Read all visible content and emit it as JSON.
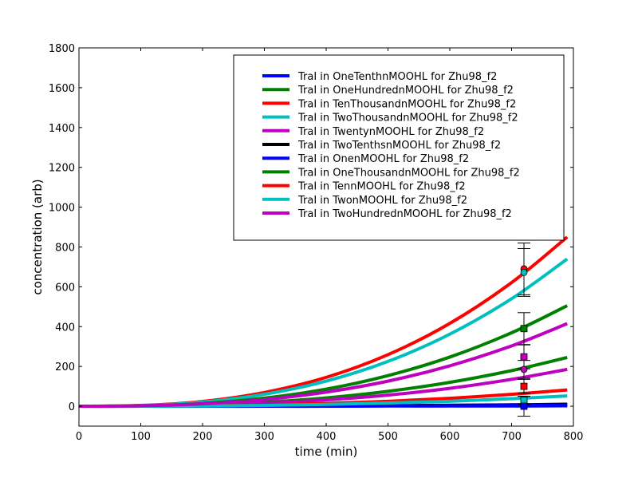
{
  "chart_data": {
    "type": "line",
    "title": "",
    "xlabel": "time (min)",
    "ylabel": "concentration (arb)",
    "xlim": [
      0,
      800
    ],
    "ylim": [
      -100,
      1800
    ],
    "xticks": [
      0,
      100,
      200,
      300,
      400,
      500,
      600,
      700,
      800
    ],
    "yticks": [
      0,
      200,
      400,
      600,
      800,
      1000,
      1200,
      1400,
      1600,
      1800
    ],
    "grid": false,
    "legend_position": "top-right",
    "x": [
      0,
      100,
      200,
      300,
      400,
      500,
      600,
      700,
      790
    ],
    "series": [
      {
        "name": "TraI in OneTenthnMOOHL for Zhu98_f2",
        "color": "#0000ff",
        "values": [
          0,
          0,
          0,
          0,
          0,
          1,
          1,
          1,
          2
        ]
      },
      {
        "name": "TraI in OneHundrednMOOHL for Zhu98_f2",
        "color": "#008000",
        "values": [
          0,
          1,
          7,
          20,
          42,
          75,
          120,
          179,
          245
        ]
      },
      {
        "name": "TraI in TenThousandnMOOHL for Zhu98_f2",
        "color": "#ff0000",
        "values": [
          0,
          4,
          24,
          69,
          145,
          259,
          416,
          621,
          850
        ]
      },
      {
        "name": "TraI in TwoThousandnMOOHL for Zhu98_f2",
        "color": "#00bfbf",
        "values": [
          0,
          3,
          21,
          60,
          126,
          225,
          362,
          540,
          740
        ]
      },
      {
        "name": "TraI in TwentynMOOHL for Zhu98_f2",
        "color": "#bf00bf",
        "values": [
          0,
          1,
          5,
          15,
          32,
          56,
          90,
          135,
          185
        ]
      },
      {
        "name": "TraI in TwoTenthsnMOOHL for Zhu98_f2",
        "color": "#000000",
        "values": [
          0,
          0,
          0,
          1,
          2,
          3,
          5,
          7,
          10
        ]
      },
      {
        "name": "TraI in OnenMOOHL for Zhu98_f2",
        "color": "#0000ff",
        "values": [
          0,
          0,
          0,
          0,
          1,
          2,
          2,
          4,
          5
        ]
      },
      {
        "name": "TraI in OneThousandnMOOHL for Zhu98_f2",
        "color": "#008000",
        "values": [
          0,
          2,
          14,
          41,
          86,
          154,
          247,
          369,
          505
        ]
      },
      {
        "name": "TraI in TennMOOHL for Zhu98_f2",
        "color": "#ff0000",
        "values": [
          0,
          0,
          2,
          7,
          14,
          25,
          40,
          60,
          82
        ]
      },
      {
        "name": "TraI in TwonMOOHL for Zhu98_f2",
        "color": "#00bfbf",
        "values": [
          0,
          0,
          1,
          4,
          9,
          16,
          25,
          38,
          52
        ]
      },
      {
        "name": "TraI in TwoHundrednMOOHL for Zhu98_f2",
        "color": "#bf00bf",
        "values": [
          0,
          2,
          12,
          33,
          71,
          126,
          203,
          303,
          415
        ]
      }
    ],
    "measurements": [
      {
        "x": 720,
        "y": 690,
        "err": 130,
        "marker": "circle",
        "color": "#ff0000"
      },
      {
        "x": 720,
        "y": 672,
        "err": 120,
        "marker": "circle",
        "color": "#00bfbf"
      },
      {
        "x": 720,
        "y": 390,
        "err": 80,
        "marker": "square",
        "color": "#008000"
      },
      {
        "x": 720,
        "y": 248,
        "err": 60,
        "marker": "square",
        "color": "#bf00bf"
      },
      {
        "x": 720,
        "y": 185,
        "err": 45,
        "marker": "circle",
        "color": "#bf00bf"
      },
      {
        "x": 720,
        "y": 100,
        "err": 35,
        "marker": "square",
        "color": "#ff0000"
      },
      {
        "x": 720,
        "y": 30,
        "err": 20,
        "marker": "square",
        "color": "#00bfbf"
      },
      {
        "x": 720,
        "y": 0,
        "err": 50,
        "marker": "square",
        "color": "#0000ff"
      }
    ]
  }
}
